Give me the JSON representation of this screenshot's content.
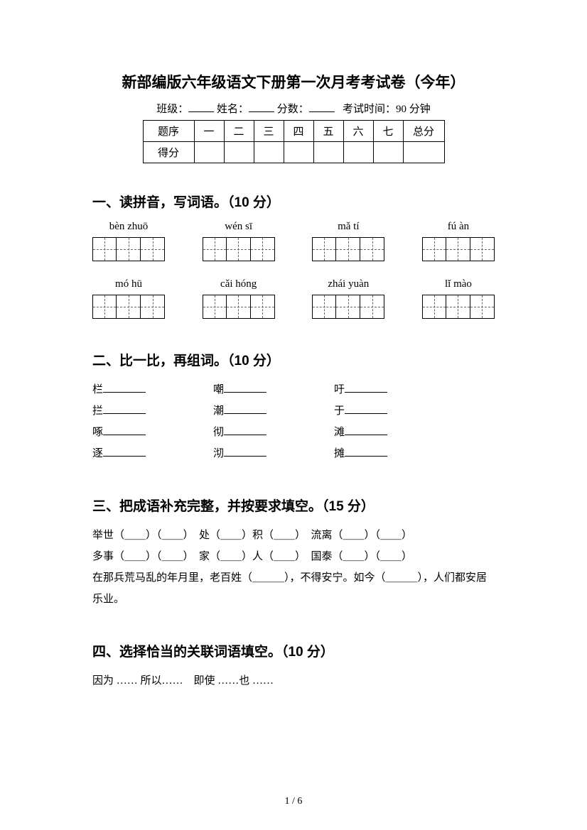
{
  "title": "新部编版六年级语文下册第一次月考考试卷（今年）",
  "meta": {
    "class_label": "班级：",
    "name_label": "姓名：",
    "score_label": "分数：",
    "time_label": "考试时间：90 分钟"
  },
  "score_table": {
    "row1_label": "题序",
    "row2_label": "得分",
    "cols": [
      "一",
      "二",
      "三",
      "四",
      "五",
      "六",
      "七"
    ],
    "total": "总分"
  },
  "section1": {
    "heading": "一、读拼音，写词语。（10 分）",
    "items_row1": [
      {
        "pinyin": "bèn zhuō",
        "cells": 3
      },
      {
        "pinyin": "wén sī",
        "cells": 3
      },
      {
        "pinyin": "mǎ tí",
        "cells": 3
      },
      {
        "pinyin": "fú àn",
        "cells": 3
      }
    ],
    "items_row2": [
      {
        "pinyin": "mó hū",
        "cells": 3
      },
      {
        "pinyin": "cǎi hóng",
        "cells": 3
      },
      {
        "pinyin": "zhái yuàn",
        "cells": 3
      },
      {
        "pinyin": "lǐ mào",
        "cells": 3
      }
    ]
  },
  "section2": {
    "heading": "二、比一比，再组词。（10 分）",
    "rows": [
      [
        "栏",
        "嘲",
        "吁"
      ],
      [
        "拦",
        "潮",
        "于"
      ],
      [
        "啄",
        "彻",
        "滩"
      ],
      [
        "逐",
        "沏",
        "摊"
      ]
    ]
  },
  "section3": {
    "heading": "三、把成语补充完整，并按要求填空。（15 分）",
    "line1": "举世（＿＿）（＿＿）　处（＿＿）积（＿＿）　流离（＿＿）（＿＿）",
    "line2": "多事（＿＿）（＿＿）　家（＿＿）人（＿＿）　国泰（＿＿）（＿＿）",
    "line3": "在那兵荒马乱的年月里，老百姓（＿＿＿），不得安宁。如今（＿＿＿），人们都安居乐业。"
  },
  "section4": {
    "heading": "四、选择恰当的关联词语填空。（10 分）",
    "line1": "因为 …… 所以……　即使 ……也 ……"
  },
  "footer": "1 / 6"
}
